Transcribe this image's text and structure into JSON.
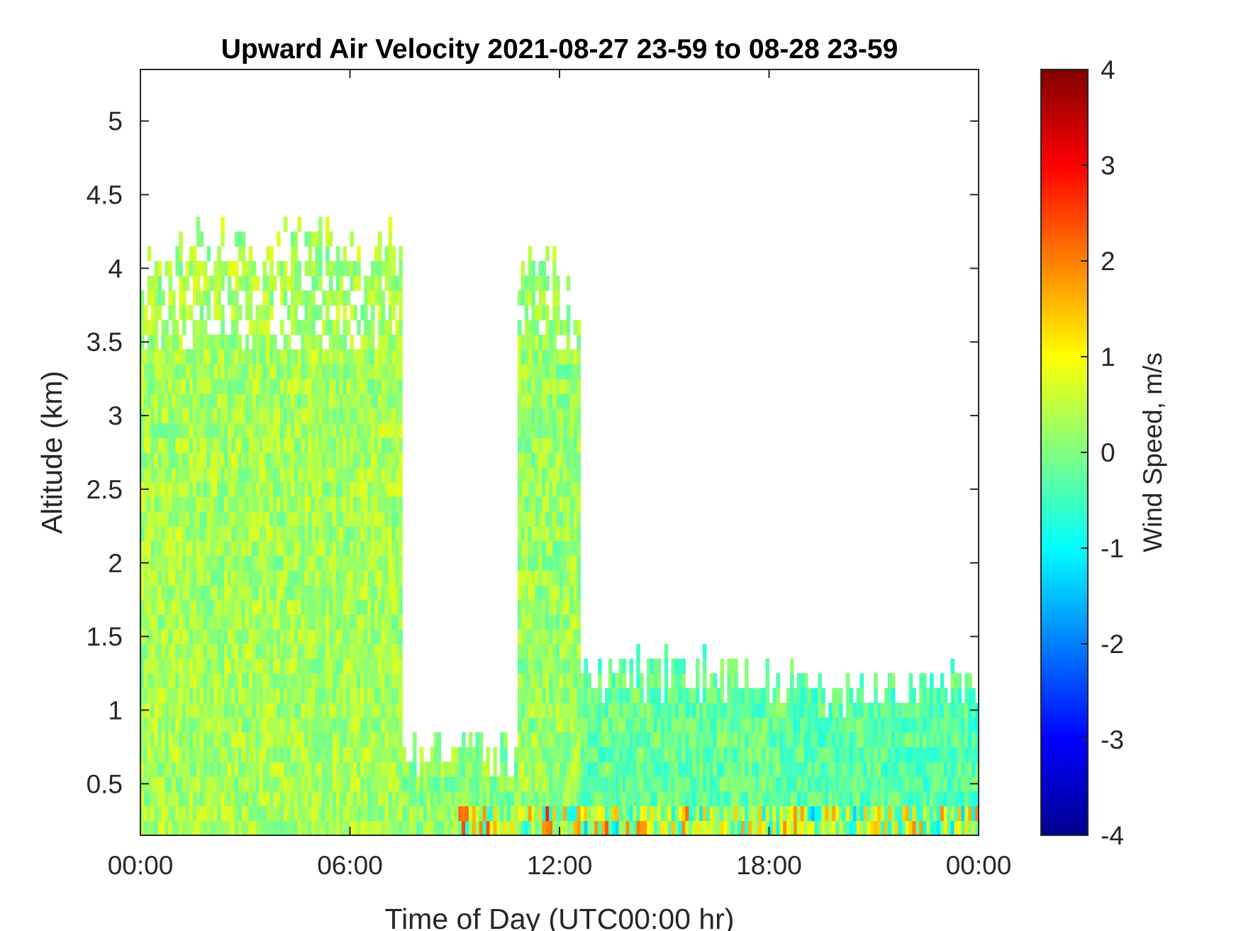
{
  "chart_data": {
    "type": "heatmap",
    "title": "Upward Air Velocity 2021-08-27 23-59 to 08-28 23-59",
    "xlabel": "Time of Day (UTC00:00 hr)",
    "ylabel": "Altitude (km)",
    "x_ticks": [
      0,
      6,
      12,
      18,
      24
    ],
    "x_tick_labels": [
      "00:00",
      "06:00",
      "12:00",
      "18:00",
      "00:00"
    ],
    "xlim": [
      0,
      24
    ],
    "y_ticks": [
      0.5,
      1,
      1.5,
      2,
      2.5,
      3,
      3.5,
      4,
      4.5,
      5
    ],
    "y_tick_labels": [
      "0.5",
      "1",
      "1.5",
      "2",
      "2.5",
      "3",
      "3.5",
      "4",
      "4.5",
      "5"
    ],
    "ylim": [
      0.15,
      5.35
    ],
    "colorbar": {
      "label": "Wind Speed, m/s",
      "range": [
        -4,
        4
      ],
      "ticks": [
        4,
        3,
        2,
        1,
        0,
        -1,
        -2,
        -3,
        -4
      ],
      "tick_labels": [
        "4",
        "3",
        "2",
        "1",
        "0",
        "-1",
        "-2",
        "-3",
        "-4"
      ],
      "colormap": "jet",
      "colors": [
        "#00008f",
        "#0000ff",
        "#0080ff",
        "#00ffff",
        "#80ff80",
        "#ffff00",
        "#ff8000",
        "#ff0000",
        "#800000"
      ]
    },
    "data_extent": [
      {
        "hours": [
          0.0,
          7.5
        ],
        "top_km": 4.1,
        "typical_w": 0.3
      },
      {
        "hours": [
          7.5,
          10.8
        ],
        "top_km": 0.65,
        "typical_w": 0.1
      },
      {
        "hours": [
          10.8,
          12.0
        ],
        "top_km": 4.0,
        "typical_w": 0.2
      },
      {
        "hours": [
          12.0,
          12.6
        ],
        "top_km": 3.8,
        "typical_w": 0.2
      },
      {
        "hours": [
          12.6,
          18.5
        ],
        "top_km": 1.2,
        "typical_w": -0.2
      },
      {
        "hours": [
          18.5,
          24.0
        ],
        "top_km": 1.1,
        "typical_w": -0.3
      }
    ],
    "grid": false
  }
}
